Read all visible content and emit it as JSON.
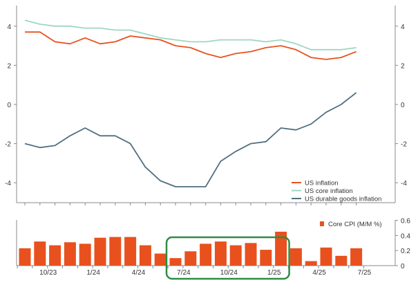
{
  "chart_data": [
    {
      "type": "line",
      "title": "",
      "xlabel": "",
      "ylabel": "",
      "ylim": [
        -5,
        5
      ],
      "yticks": [
        -4,
        -2,
        0,
        2,
        4
      ],
      "ytick_labels": [
        "-4",
        "-2",
        "0",
        "2",
        "4"
      ],
      "grid": false,
      "legend_position": "bottom-right",
      "x": [
        "2023-08",
        "2023-09",
        "2023-10",
        "2023-11",
        "2023-12",
        "2024-01",
        "2024-02",
        "2024-03",
        "2024-04",
        "2024-05",
        "2024-06",
        "2024-07",
        "2024-08",
        "2024-09",
        "2024-10",
        "2024-11",
        "2024-12",
        "2025-01",
        "2025-02",
        "2025-03",
        "2025-04",
        "2025-05",
        "2025-06"
      ],
      "series": [
        {
          "name": "US inflation",
          "color": "#e8511e",
          "values": [
            3.7,
            3.7,
            3.2,
            3.1,
            3.4,
            3.1,
            3.2,
            3.5,
            3.4,
            3.3,
            3.0,
            2.9,
            2.6,
            2.4,
            2.6,
            2.7,
            2.9,
            3.0,
            2.8,
            2.4,
            2.3,
            2.4,
            2.7
          ]
        },
        {
          "name": "US core inflation",
          "color": "#9fd6c2",
          "values": [
            4.3,
            4.1,
            4.0,
            4.0,
            3.9,
            3.9,
            3.8,
            3.8,
            3.6,
            3.4,
            3.3,
            3.2,
            3.2,
            3.3,
            3.3,
            3.3,
            3.2,
            3.3,
            3.1,
            2.8,
            2.8,
            2.8,
            2.9
          ]
        },
        {
          "name": "US durable goods inflation",
          "color": "#4f6f7f",
          "values": [
            -2.0,
            -2.2,
            -2.1,
            -1.6,
            -1.2,
            -1.6,
            -1.6,
            -2.0,
            -3.2,
            -3.9,
            -4.2,
            -4.2,
            -4.2,
            -2.9,
            -2.4,
            -2.0,
            -1.9,
            -1.2,
            -1.3,
            -1.0,
            -0.4,
            0.0,
            0.6
          ]
        }
      ]
    },
    {
      "type": "bar",
      "title": "",
      "xlabel": "",
      "ylabel": "",
      "ylim": [
        0,
        0.6
      ],
      "yticks": [
        0,
        0.2,
        0.4,
        0.6
      ],
      "ytick_labels": [
        "0",
        "0.2",
        "0.4",
        "0.6"
      ],
      "xtick_labels": [
        "10/23",
        "1/24",
        "4/24",
        "7/24",
        "10/24",
        "1/25",
        "4/25",
        "7/25"
      ],
      "legend_position": "top-right",
      "annotation": "Sep 2024 – Jan 2025 bars highlighted with green rounded box",
      "series": [
        {
          "name": "Core CPI (M/M %)",
          "color": "#e8511e",
          "values": [
            0.23,
            0.32,
            0.27,
            0.31,
            0.29,
            0.37,
            0.38,
            0.38,
            0.27,
            0.16,
            0.1,
            0.19,
            0.29,
            0.32,
            0.27,
            0.3,
            0.21,
            0.45,
            0.23,
            0.06,
            0.24,
            0.13,
            0.23
          ]
        }
      ]
    }
  ]
}
